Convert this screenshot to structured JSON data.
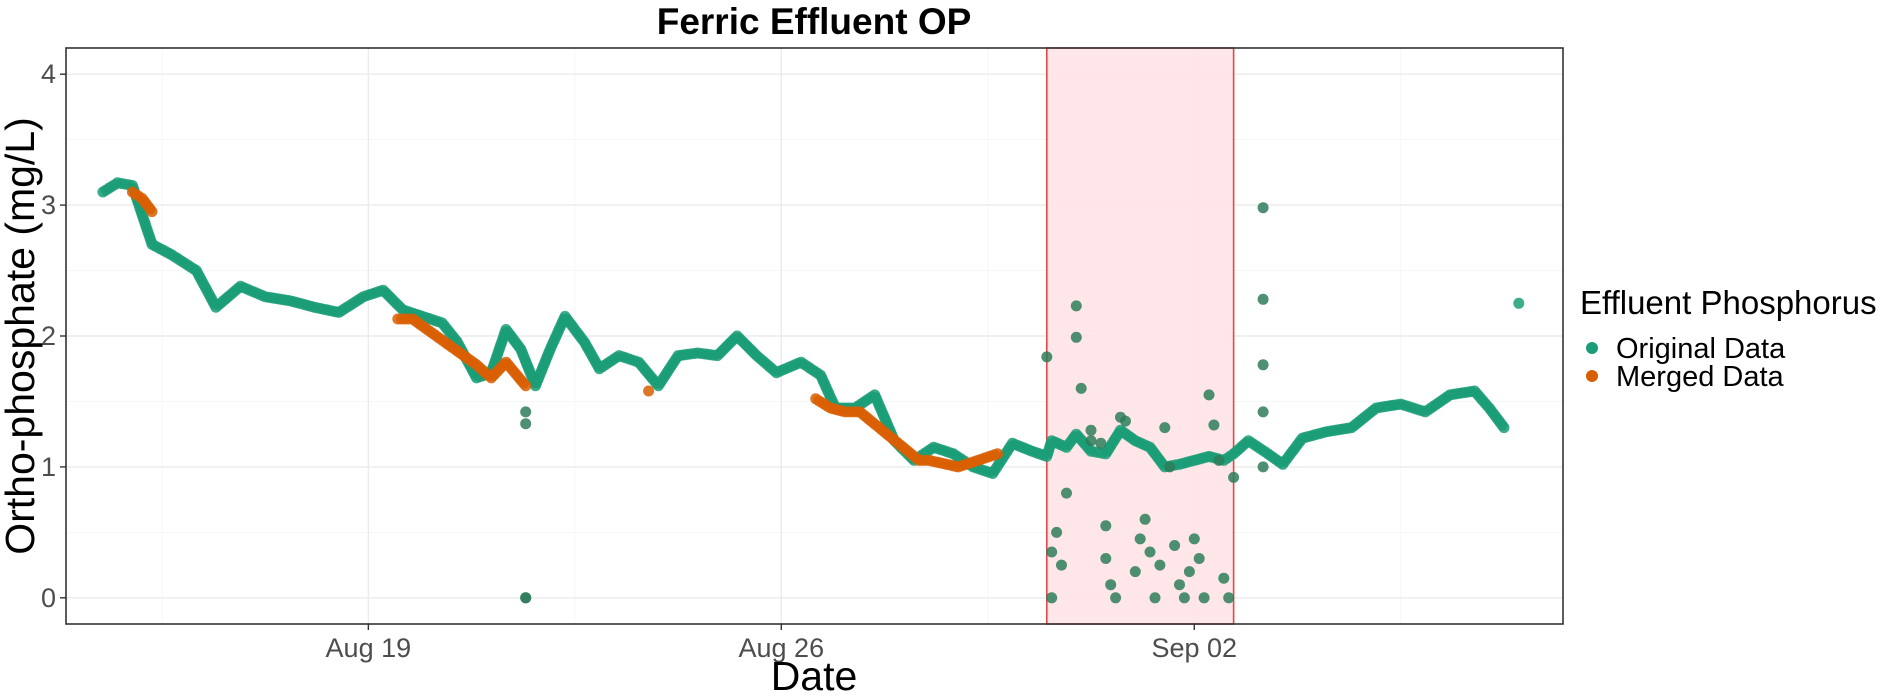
{
  "chart_data": {
    "type": "scatter",
    "title": "Ferric Effluent OP",
    "xlabel": "Date",
    "ylabel": "Ortho-phosphate (mg/L)",
    "x_axis": {
      "type": "date",
      "range": [
        "2019-08-13T21:00",
        "2019-09-08T06:00"
      ],
      "ticks": [
        {
          "date": "2019-08-19",
          "label": "Aug 19"
        },
        {
          "date": "2019-08-26",
          "label": "Aug 26"
        },
        {
          "date": "2019-09-02",
          "label": "Sep 02"
        }
      ]
    },
    "y_axis": {
      "range": [
        -0.2,
        4.2
      ],
      "ticks": [
        0,
        1,
        2,
        3,
        4
      ]
    },
    "grid": true,
    "legend": {
      "title": "Effluent Phosphorus",
      "position": "right",
      "entries": [
        {
          "label": "Original Data",
          "color": "#1b9e77"
        },
        {
          "label": "Merged Data",
          "color": "#d95f02"
        }
      ]
    },
    "highlight_region": {
      "x_start": "2019-08-30T12:00",
      "x_end": "2019-09-02T16:00",
      "fill": "#ffe3e6",
      "stroke": "#e34848"
    },
    "series": [
      {
        "name": "Original Data",
        "color": "#1b9e77",
        "x": [
          "2019-08-14T12:00",
          "2019-08-14T18:00",
          "2019-08-15T00:00",
          "2019-08-15T08:00",
          "2019-08-15T16:00",
          "2019-08-16T02:00",
          "2019-08-16T10:00",
          "2019-08-16T20:00",
          "2019-08-17T06:00",
          "2019-08-17T16:00",
          "2019-08-18T02:00",
          "2019-08-18T12:00",
          "2019-08-18T22:00",
          "2019-08-19T06:00",
          "2019-08-19T14:00",
          "2019-08-19T22:00",
          "2019-08-20T06:00",
          "2019-08-20T12:00",
          "2019-08-20T20:00",
          "2019-08-21T02:00",
          "2019-08-21T08:00",
          "2019-08-21T14:00",
          "2019-08-21T20:00",
          "2019-08-22T02:00",
          "2019-08-22T08:00",
          "2019-08-22T16:00",
          "2019-08-22T22:00",
          "2019-08-23T06:00",
          "2019-08-23T14:00",
          "2019-08-23T22:00",
          "2019-08-24T06:00",
          "2019-08-24T14:00",
          "2019-08-24T22:00",
          "2019-08-25T06:00",
          "2019-08-25T14:00",
          "2019-08-25T22:00",
          "2019-08-26T08:00",
          "2019-08-26T16:00",
          "2019-08-26T22:00",
          "2019-08-27T06:00",
          "2019-08-27T14:00",
          "2019-08-27T22:00",
          "2019-08-28T06:00",
          "2019-08-28T14:00",
          "2019-08-28T22:00",
          "2019-08-29T06:00",
          "2019-08-29T14:00",
          "2019-08-29T22:00",
          "2019-08-30T06:00",
          "2019-08-30T12:00",
          "2019-08-30T14:00",
          "2019-08-30T20:00",
          "2019-08-31T00:00",
          "2019-08-31T06:00",
          "2019-08-31T12:00",
          "2019-08-31T18:00",
          "2019-09-01T00:00",
          "2019-09-01T06:00",
          "2019-09-01T12:00",
          "2019-09-01T18:00",
          "2019-09-02T00:00",
          "2019-09-02T06:00",
          "2019-09-02T12:00",
          "2019-09-02T16:00",
          "2019-09-02T22:00",
          "2019-09-03T06:00",
          "2019-09-03T12:00",
          "2019-09-03T20:00",
          "2019-09-04T06:00",
          "2019-09-04T16:00",
          "2019-09-05T02:00",
          "2019-09-05T12:00",
          "2019-09-05T22:00",
          "2019-09-06T08:00",
          "2019-09-06T18:00",
          "2019-09-07T00:00",
          "2019-09-07T06:00",
          "2019-09-07T12:00"
        ],
        "y": [
          3.1,
          3.17,
          3.15,
          2.7,
          2.62,
          2.5,
          2.22,
          2.38,
          2.3,
          2.27,
          2.22,
          2.18,
          2.3,
          2.35,
          2.2,
          2.15,
          2.1,
          1.96,
          1.68,
          1.72,
          2.05,
          1.9,
          1.62,
          1.9,
          2.15,
          1.95,
          1.75,
          1.85,
          1.8,
          1.62,
          1.85,
          1.87,
          1.85,
          2.0,
          1.85,
          1.72,
          1.8,
          1.7,
          1.45,
          1.45,
          1.55,
          1.2,
          1.05,
          1.15,
          1.1,
          1.0,
          0.95,
          1.18,
          1.12,
          1.08,
          1.2,
          1.15,
          1.25,
          1.12,
          1.1,
          1.28,
          1.2,
          1.15,
          1.0,
          1.02,
          1.05,
          1.08,
          1.05,
          1.1,
          1.2,
          1.1,
          1.02,
          1.22,
          1.27,
          1.3,
          1.45,
          1.48,
          1.42,
          1.55,
          1.58,
          1.45,
          1.3,
          2.25
        ]
      },
      {
        "name": "Merged Data",
        "color": "#d95f02",
        "x": [
          "2019-08-15T00:00",
          "2019-08-15T04:00",
          "2019-08-15T08:00",
          "2019-08-19T12:00",
          "2019-08-19T18:00",
          "2019-08-20T20:00",
          "2019-08-21T02:00",
          "2019-08-21T08:00",
          "2019-08-21T16:00",
          "2019-08-23T18:00",
          "2019-08-26T14:00",
          "2019-08-26T20:00",
          "2019-08-27T02:00",
          "2019-08-27T08:00",
          "2019-08-28T08:00",
          "2019-08-28T12:00",
          "2019-08-29T00:00",
          "2019-08-29T16:00"
        ],
        "y": [
          3.1,
          3.05,
          2.95,
          2.13,
          2.13,
          1.78,
          1.68,
          1.8,
          1.62,
          1.58,
          1.52,
          1.45,
          1.42,
          1.42,
          1.05,
          1.05,
          1.0,
          1.1
        ]
      },
      {
        "name": "",
        "color": "#2e7d5b",
        "x": [
          "2019-08-21T16:00",
          "2019-08-21T16:00",
          "2019-08-21T16:00",
          "2019-08-21T16:00",
          "2019-08-30T12:00",
          "2019-08-30T14:00",
          "2019-08-30T14:00",
          "2019-08-30T16:00",
          "2019-08-30T18:00",
          "2019-08-30T20:00",
          "2019-08-31T00:00",
          "2019-08-31T00:00",
          "2019-08-31T02:00",
          "2019-08-31T06:00",
          "2019-08-31T06:00",
          "2019-08-31T10:00",
          "2019-08-31T12:00",
          "2019-08-31T12:00",
          "2019-08-31T14:00",
          "2019-08-31T16:00",
          "2019-08-31T18:00",
          "2019-08-31T20:00",
          "2019-09-01T00:00",
          "2019-09-01T02:00",
          "2019-09-01T04:00",
          "2019-09-01T06:00",
          "2019-09-01T08:00",
          "2019-09-01T10:00",
          "2019-09-01T12:00",
          "2019-09-01T14:00",
          "2019-09-01T16:00",
          "2019-09-01T18:00",
          "2019-09-01T20:00",
          "2019-09-01T22:00",
          "2019-09-02T00:00",
          "2019-09-02T02:00",
          "2019-09-02T04:00",
          "2019-09-02T06:00",
          "2019-09-02T08:00",
          "2019-09-02T10:00",
          "2019-09-02T12:00",
          "2019-09-02T14:00",
          "2019-09-02T16:00",
          "2019-09-03T04:00",
          "2019-09-03T04:00",
          "2019-09-03T04:00",
          "2019-09-03T04:00",
          "2019-09-03T04:00"
        ],
        "y": [
          1.42,
          1.33,
          0.0,
          0.0,
          1.84,
          0.35,
          0.0,
          0.5,
          0.25,
          0.8,
          2.23,
          1.99,
          1.6,
          1.28,
          1.2,
          1.18,
          0.55,
          0.3,
          0.1,
          0.0,
          1.38,
          1.35,
          0.2,
          0.45,
          0.6,
          0.35,
          0.0,
          0.25,
          1.3,
          1.0,
          0.4,
          0.1,
          0.0,
          0.2,
          0.45,
          0.3,
          0.0,
          1.55,
          1.32,
          1.05,
          0.15,
          0.0,
          0.92,
          2.98,
          2.28,
          1.78,
          1.42,
          1.0
        ]
      }
    ]
  }
}
